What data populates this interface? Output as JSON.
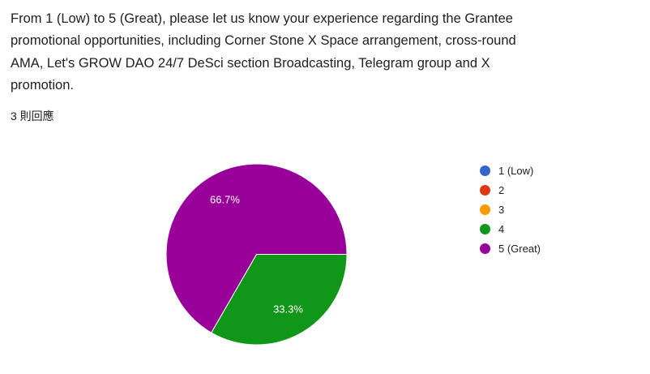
{
  "question": {
    "title": "From 1 (Low) to 5 (Great), please let us know your experience regarding the Grantee promotional opportunities, including Corner Stone X Space arrangement, cross-round AMA, Let's GROW DAO 24/7 DeSci section Broadcasting, Telegram group and X promotion.",
    "title_lines": [
      "From 1 (Low) to 5 (Great), please let us know your experience regarding the Grantee",
      "promotional opportunities, including Corner Stone X Space arrangement, cross-round",
      "AMA, Let's GROW DAO 24/7 DeSci section Broadcasting, Telegram group and X",
      "promotion."
    ],
    "response_count_label": "3 則回應"
  },
  "chart_data": {
    "type": "pie",
    "title": "From 1 (Low) to 5 (Great), please let us know your experience regarding the Grantee promotional opportunities, including Corner Stone X Space arrangement, cross-round AMA, Let's GROW DAO 24/7 DeSci section Broadcasting, Telegram group and X promotion.",
    "total_responses": 3,
    "categories": [
      "1 (Low)",
      "2",
      "3",
      "4",
      "5 (Great)"
    ],
    "values": [
      0,
      0,
      0,
      1,
      2
    ],
    "percentages": [
      0,
      0,
      0,
      33.3,
      66.7
    ],
    "percent_labels": [
      "",
      "",
      "",
      "33.3%",
      "66.7%"
    ],
    "colors": [
      "#3366cc",
      "#dc3912",
      "#ff9900",
      "#109618",
      "#990099"
    ],
    "slice_label_color": "#ffffff",
    "legend_position": "right",
    "start_angle_deg": 0,
    "direction": "clockwise"
  }
}
